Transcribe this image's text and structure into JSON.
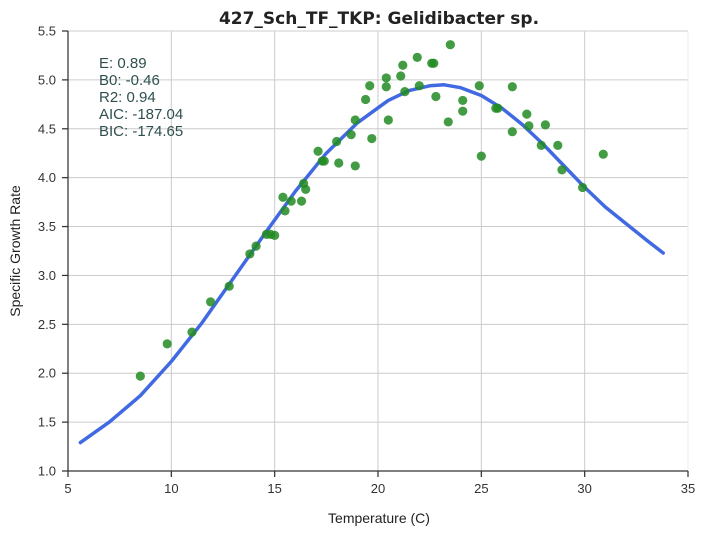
{
  "chart_data": {
    "type": "scatter",
    "title": "427_Sch_TF_TKP: Gelidibacter sp.",
    "xlabel": "Temperature (C)",
    "ylabel": "Specific Growth Rate",
    "xlim": [
      5,
      35
    ],
    "ylim": [
      1.0,
      5.5
    ],
    "xticks": [
      5,
      10,
      15,
      20,
      25,
      30,
      35
    ],
    "yticks": [
      1.0,
      1.5,
      2.0,
      2.5,
      3.0,
      3.5,
      4.0,
      4.5,
      5.0,
      5.5
    ],
    "xtick_labels": [
      "5",
      "10",
      "15",
      "20",
      "25",
      "30",
      "35"
    ],
    "ytick_labels": [
      "1.0",
      "1.5",
      "2.0",
      "2.5",
      "3.0",
      "3.5",
      "4.0",
      "4.5",
      "5.0",
      "5.5"
    ],
    "grid": true,
    "stats": [
      {
        "label": "E:",
        "value": "0.89"
      },
      {
        "label": "B0:",
        "value": "-0.46"
      },
      {
        "label": "R2:",
        "value": "0.94"
      },
      {
        "label": "AIC:",
        "value": "-187.04"
      },
      {
        "label": "BIC:",
        "value": "-174.65"
      }
    ],
    "series": [
      {
        "kind": "points",
        "color": "#228b22",
        "points": [
          [
            8.5,
            1.97
          ],
          [
            9.8,
            2.3
          ],
          [
            11.0,
            2.42
          ],
          [
            11.9,
            2.73
          ],
          [
            12.8,
            2.89
          ],
          [
            13.8,
            3.22
          ],
          [
            14.1,
            3.3
          ],
          [
            14.6,
            3.42
          ],
          [
            14.8,
            3.42
          ],
          [
            15.0,
            3.41
          ],
          [
            15.4,
            3.8
          ],
          [
            15.5,
            3.66
          ],
          [
            15.8,
            3.76
          ],
          [
            16.3,
            3.76
          ],
          [
            16.4,
            3.94
          ],
          [
            16.5,
            3.88
          ],
          [
            17.1,
            4.27
          ],
          [
            17.3,
            4.17
          ],
          [
            17.4,
            4.17
          ],
          [
            18.0,
            4.37
          ],
          [
            18.1,
            4.15
          ],
          [
            18.7,
            4.44
          ],
          [
            18.9,
            4.12
          ],
          [
            18.9,
            4.59
          ],
          [
            19.4,
            4.8
          ],
          [
            19.6,
            4.94
          ],
          [
            19.7,
            4.4
          ],
          [
            20.4,
            5.02
          ],
          [
            20.4,
            4.93
          ],
          [
            20.5,
            4.59
          ],
          [
            21.1,
            5.04
          ],
          [
            21.2,
            5.15
          ],
          [
            21.3,
            4.88
          ],
          [
            21.9,
            5.23
          ],
          [
            22.0,
            4.94
          ],
          [
            22.6,
            5.17
          ],
          [
            22.7,
            5.17
          ],
          [
            22.8,
            4.83
          ],
          [
            23.4,
            4.57
          ],
          [
            23.5,
            5.36
          ],
          [
            24.1,
            4.79
          ],
          [
            24.1,
            4.68
          ],
          [
            24.9,
            4.94
          ],
          [
            25.0,
            4.22
          ],
          [
            25.7,
            4.71
          ],
          [
            25.8,
            4.71
          ],
          [
            26.5,
            4.93
          ],
          [
            26.5,
            4.47
          ],
          [
            27.2,
            4.65
          ],
          [
            27.3,
            4.53
          ],
          [
            27.9,
            4.33
          ],
          [
            28.1,
            4.54
          ],
          [
            28.7,
            4.33
          ],
          [
            28.9,
            4.08
          ],
          [
            29.9,
            3.9
          ],
          [
            30.9,
            4.24
          ]
        ]
      },
      {
        "kind": "line",
        "color": "#4169e1",
        "points": [
          [
            5.6,
            1.29
          ],
          [
            7.0,
            1.5
          ],
          [
            8.5,
            1.77
          ],
          [
            10.0,
            2.12
          ],
          [
            11.5,
            2.52
          ],
          [
            13.0,
            2.97
          ],
          [
            14.5,
            3.42
          ],
          [
            16.0,
            3.86
          ],
          [
            17.5,
            4.25
          ],
          [
            19.0,
            4.56
          ],
          [
            20.5,
            4.79
          ],
          [
            21.5,
            4.89
          ],
          [
            22.5,
            4.94
          ],
          [
            23.2,
            4.95
          ],
          [
            24.0,
            4.92
          ],
          [
            25.0,
            4.84
          ],
          [
            26.0,
            4.71
          ],
          [
            27.0,
            4.54
          ],
          [
            28.0,
            4.34
          ],
          [
            29.0,
            4.12
          ],
          [
            30.0,
            3.9
          ],
          [
            31.0,
            3.7
          ],
          [
            32.0,
            3.53
          ],
          [
            33.0,
            3.36
          ],
          [
            33.8,
            3.23
          ]
        ]
      }
    ]
  }
}
